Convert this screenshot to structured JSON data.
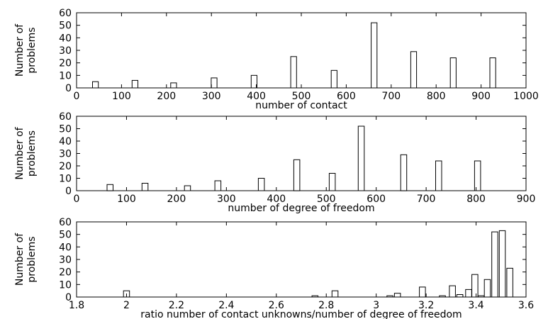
{
  "chart_data": [
    {
      "type": "bar",
      "xlabel": "number of contact",
      "ylabel": [
        "Number of",
        "problems"
      ],
      "xlim": [
        0,
        1000
      ],
      "ylim": [
        0,
        60
      ],
      "xticks": [
        0,
        100,
        200,
        300,
        400,
        500,
        600,
        700,
        800,
        900,
        1000
      ],
      "yticks": [
        0,
        10,
        20,
        30,
        40,
        50,
        60
      ],
      "bar_width": 13,
      "bars": [
        {
          "x": 42,
          "y": 5
        },
        {
          "x": 130,
          "y": 6
        },
        {
          "x": 216,
          "y": 4
        },
        {
          "x": 306,
          "y": 8
        },
        {
          "x": 395,
          "y": 10
        },
        {
          "x": 483,
          "y": 25
        },
        {
          "x": 573,
          "y": 14
        },
        {
          "x": 662,
          "y": 52
        },
        {
          "x": 750,
          "y": 29
        },
        {
          "x": 838,
          "y": 24
        },
        {
          "x": 926,
          "y": 24
        }
      ]
    },
    {
      "type": "bar",
      "xlabel": "number of degree of freedom",
      "ylabel": [
        "Number of",
        "problems"
      ],
      "xlim": [
        0,
        900
      ],
      "ylim": [
        0,
        60
      ],
      "xticks": [
        0,
        100,
        200,
        300,
        400,
        500,
        600,
        700,
        800,
        900
      ],
      "yticks": [
        0,
        10,
        20,
        30,
        40,
        50,
        60
      ],
      "bar_width": 12,
      "bars": [
        {
          "x": 67,
          "y": 5
        },
        {
          "x": 137,
          "y": 6
        },
        {
          "x": 222,
          "y": 4
        },
        {
          "x": 283,
          "y": 8
        },
        {
          "x": 370,
          "y": 10
        },
        {
          "x": 441,
          "y": 25
        },
        {
          "x": 512,
          "y": 14
        },
        {
          "x": 570,
          "y": 52
        },
        {
          "x": 655,
          "y": 29
        },
        {
          "x": 725,
          "y": 24
        },
        {
          "x": 803,
          "y": 24
        }
      ]
    },
    {
      "type": "bar",
      "xlabel": "ratio number of contact unknowns/number of degree of freedom",
      "ylabel": [
        "Number of",
        "problems"
      ],
      "xlim": [
        1.8,
        3.6
      ],
      "ylim": [
        0,
        60
      ],
      "xticks": [
        1.8,
        2,
        2.2,
        2.4,
        2.6,
        2.8,
        3,
        3.2,
        3.4,
        3.6
      ],
      "yticks": [
        0,
        10,
        20,
        30,
        40,
        50,
        60
      ],
      "bar_width": 0.024,
      "bars": [
        {
          "x": 2.0,
          "y": 5
        },
        {
          "x": 2.755,
          "y": 1
        },
        {
          "x": 2.835,
          "y": 5
        },
        {
          "x": 3.055,
          "y": 1
        },
        {
          "x": 3.085,
          "y": 3
        },
        {
          "x": 3.185,
          "y": 8
        },
        {
          "x": 3.265,
          "y": 1
        },
        {
          "x": 3.305,
          "y": 9
        },
        {
          "x": 3.335,
          "y": 1
        },
        {
          "x": 3.335,
          "y": 2
        },
        {
          "x": 3.37,
          "y": 6
        },
        {
          "x": 3.395,
          "y": 18
        },
        {
          "x": 3.42,
          "y": 1
        },
        {
          "x": 3.445,
          "y": 14
        },
        {
          "x": 3.475,
          "y": 52
        },
        {
          "x": 3.505,
          "y": 53
        },
        {
          "x": 3.535,
          "y": 23
        }
      ]
    }
  ]
}
